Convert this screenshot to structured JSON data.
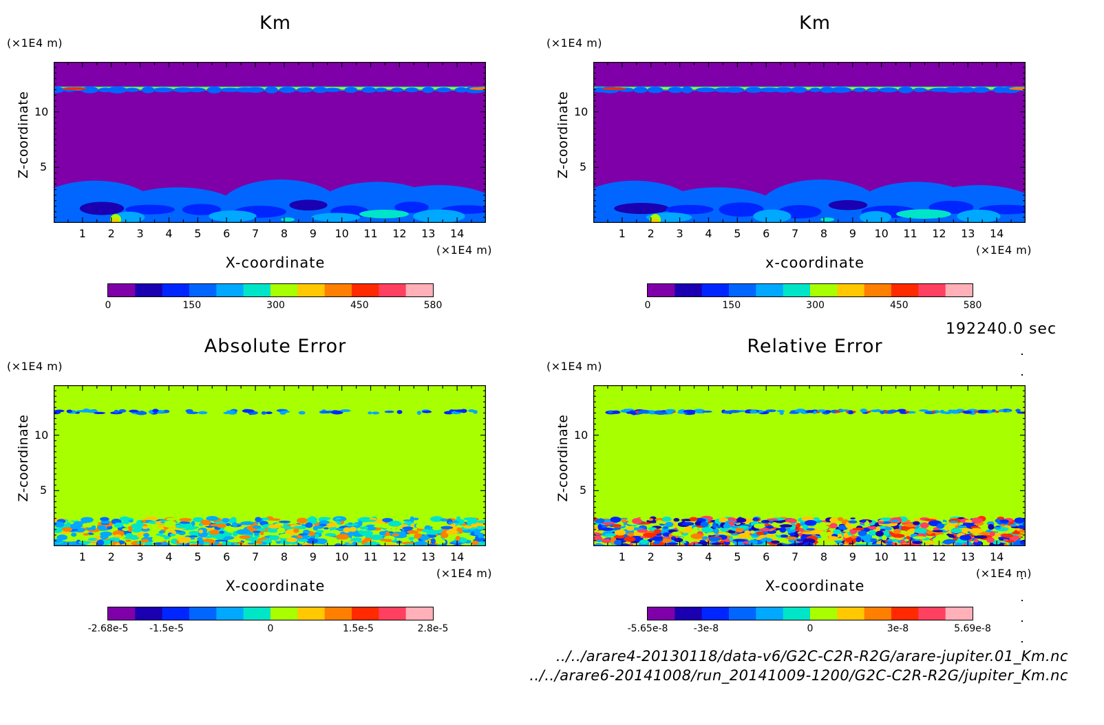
{
  "panels": [
    {
      "title": "Km",
      "xlabel": "X-coordinate",
      "ylabel": "Z-coordinate",
      "unit": "(×1E4 m)",
      "colorbar": [
        "0",
        "150",
        "300",
        "450",
        "580"
      ],
      "kind": "km"
    },
    {
      "title": "Km",
      "xlabel": "x-coordinate",
      "ylabel": "Z-coordinate",
      "unit": "(×1E4 m)",
      "colorbar": [
        "0",
        "150",
        "300",
        "450",
        "580"
      ],
      "kind": "km"
    },
    {
      "title": "Absolute Error",
      "xlabel": "X-coordinate",
      "ylabel": "Z-coordinate",
      "unit": "(×1E4 m)",
      "colorbar": [
        "-2.68e-5",
        "-1.5e-5",
        "0",
        "1.5e-5",
        "2.8e-5"
      ],
      "kind": "abs"
    },
    {
      "title": "Relative Error",
      "xlabel": "X-coordinate",
      "ylabel": "Z-coordinate",
      "unit": "(×1E4 m)",
      "colorbar": [
        "-5.65e-8",
        "-3e-8",
        "0",
        "3e-8",
        "5.69e-8"
      ],
      "kind": "rel"
    }
  ],
  "time_label": "192240.0 sec",
  "paths": [
    "../../arare4-20130118/data-v6/G2C-C2R-R2G/arare-jupiter.01_Km.nc",
    "../../arare6-20141008/run_20141009-1200/G2C-C2R-R2G/jupiter_Km.nc"
  ],
  "palette": [
    "#7f00a8",
    "#1a00b0",
    "#0026ff",
    "#0066ff",
    "#00a8ff",
    "#00e5c8",
    "#a8ff00",
    "#ffc800",
    "#ff7f00",
    "#ff2a00",
    "#ff4060",
    "#ffb0b8"
  ],
  "chart_data": [
    {
      "type": "heatmap",
      "title": "Km",
      "xlabel": "X-coordinate",
      "ylabel": "Z-coordinate",
      "x_ticks": [
        1,
        2,
        3,
        4,
        5,
        6,
        7,
        8,
        9,
        10,
        11,
        12,
        13,
        14
      ],
      "y_ticks": [
        5,
        10
      ],
      "xlim": [
        0,
        15
      ],
      "ylim": [
        0,
        14.5
      ],
      "units": "(×1E4 m)",
      "colorbar_range": [
        0,
        580
      ],
      "colorbar_ticks": [
        0,
        150,
        300,
        450,
        580
      ]
    },
    {
      "type": "heatmap",
      "title": "Km",
      "xlabel": "x-coordinate",
      "ylabel": "Z-coordinate",
      "x_ticks": [
        1,
        2,
        3,
        4,
        5,
        6,
        7,
        8,
        9,
        10,
        11,
        12,
        13,
        14
      ],
      "y_ticks": [
        5,
        10
      ],
      "xlim": [
        0,
        15
      ],
      "ylim": [
        0,
        14.5
      ],
      "units": "(×1E4 m)",
      "colorbar_range": [
        0,
        580
      ],
      "colorbar_ticks": [
        0,
        150,
        300,
        450,
        580
      ]
    },
    {
      "type": "heatmap",
      "title": "Absolute Error",
      "xlabel": "X-coordinate",
      "ylabel": "Z-coordinate",
      "x_ticks": [
        1,
        2,
        3,
        4,
        5,
        6,
        7,
        8,
        9,
        10,
        11,
        12,
        13,
        14
      ],
      "y_ticks": [
        5,
        10
      ],
      "xlim": [
        0,
        15
      ],
      "ylim": [
        0,
        14.5
      ],
      "units": "(×1E4 m)",
      "colorbar_range": [
        -2.68e-05,
        2.8e-05
      ],
      "colorbar_ticks": [
        -2.68e-05,
        -1.5e-05,
        0,
        1.5e-05,
        2.8e-05
      ]
    },
    {
      "type": "heatmap",
      "title": "Relative Error",
      "xlabel": "X-coordinate",
      "ylabel": "Z-coordinate",
      "x_ticks": [
        1,
        2,
        3,
        4,
        5,
        6,
        7,
        8,
        9,
        10,
        11,
        12,
        13,
        14
      ],
      "y_ticks": [
        5,
        10
      ],
      "xlim": [
        0,
        15
      ],
      "ylim": [
        0,
        14.5
      ],
      "units": "(×1E4 m)",
      "colorbar_range": [
        -5.65e-08,
        5.69e-08
      ],
      "colorbar_ticks": [
        -5.65e-08,
        -3e-08,
        0,
        3e-08,
        5.69e-08
      ]
    }
  ]
}
